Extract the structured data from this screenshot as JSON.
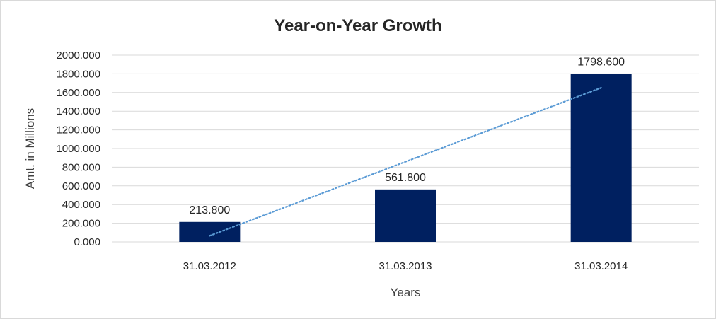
{
  "chart_data": {
    "type": "bar",
    "title": "Year-on-Year Growth",
    "xlabel": "Years",
    "ylabel": "Amt. in Millions",
    "categories": [
      "31.03.2012",
      "31.03.2013",
      "31.03.2014"
    ],
    "series": [
      {
        "values": [
          213.8,
          561.8,
          1798.6
        ],
        "color": "#002060"
      }
    ],
    "data_labels": [
      "213.800",
      "561.800",
      "1798.600"
    ],
    "yticks": [
      "0.000",
      "200.000",
      "400.000",
      "600.000",
      "800.000",
      "1000.000",
      "1200.000",
      "1400.000",
      "1600.000",
      "1800.000",
      "2000.000"
    ],
    "ylim": [
      0,
      2000
    ],
    "grid": true,
    "trendline": {
      "type": "linear",
      "style": "dotted",
      "color": "#5b9bd5"
    }
  }
}
